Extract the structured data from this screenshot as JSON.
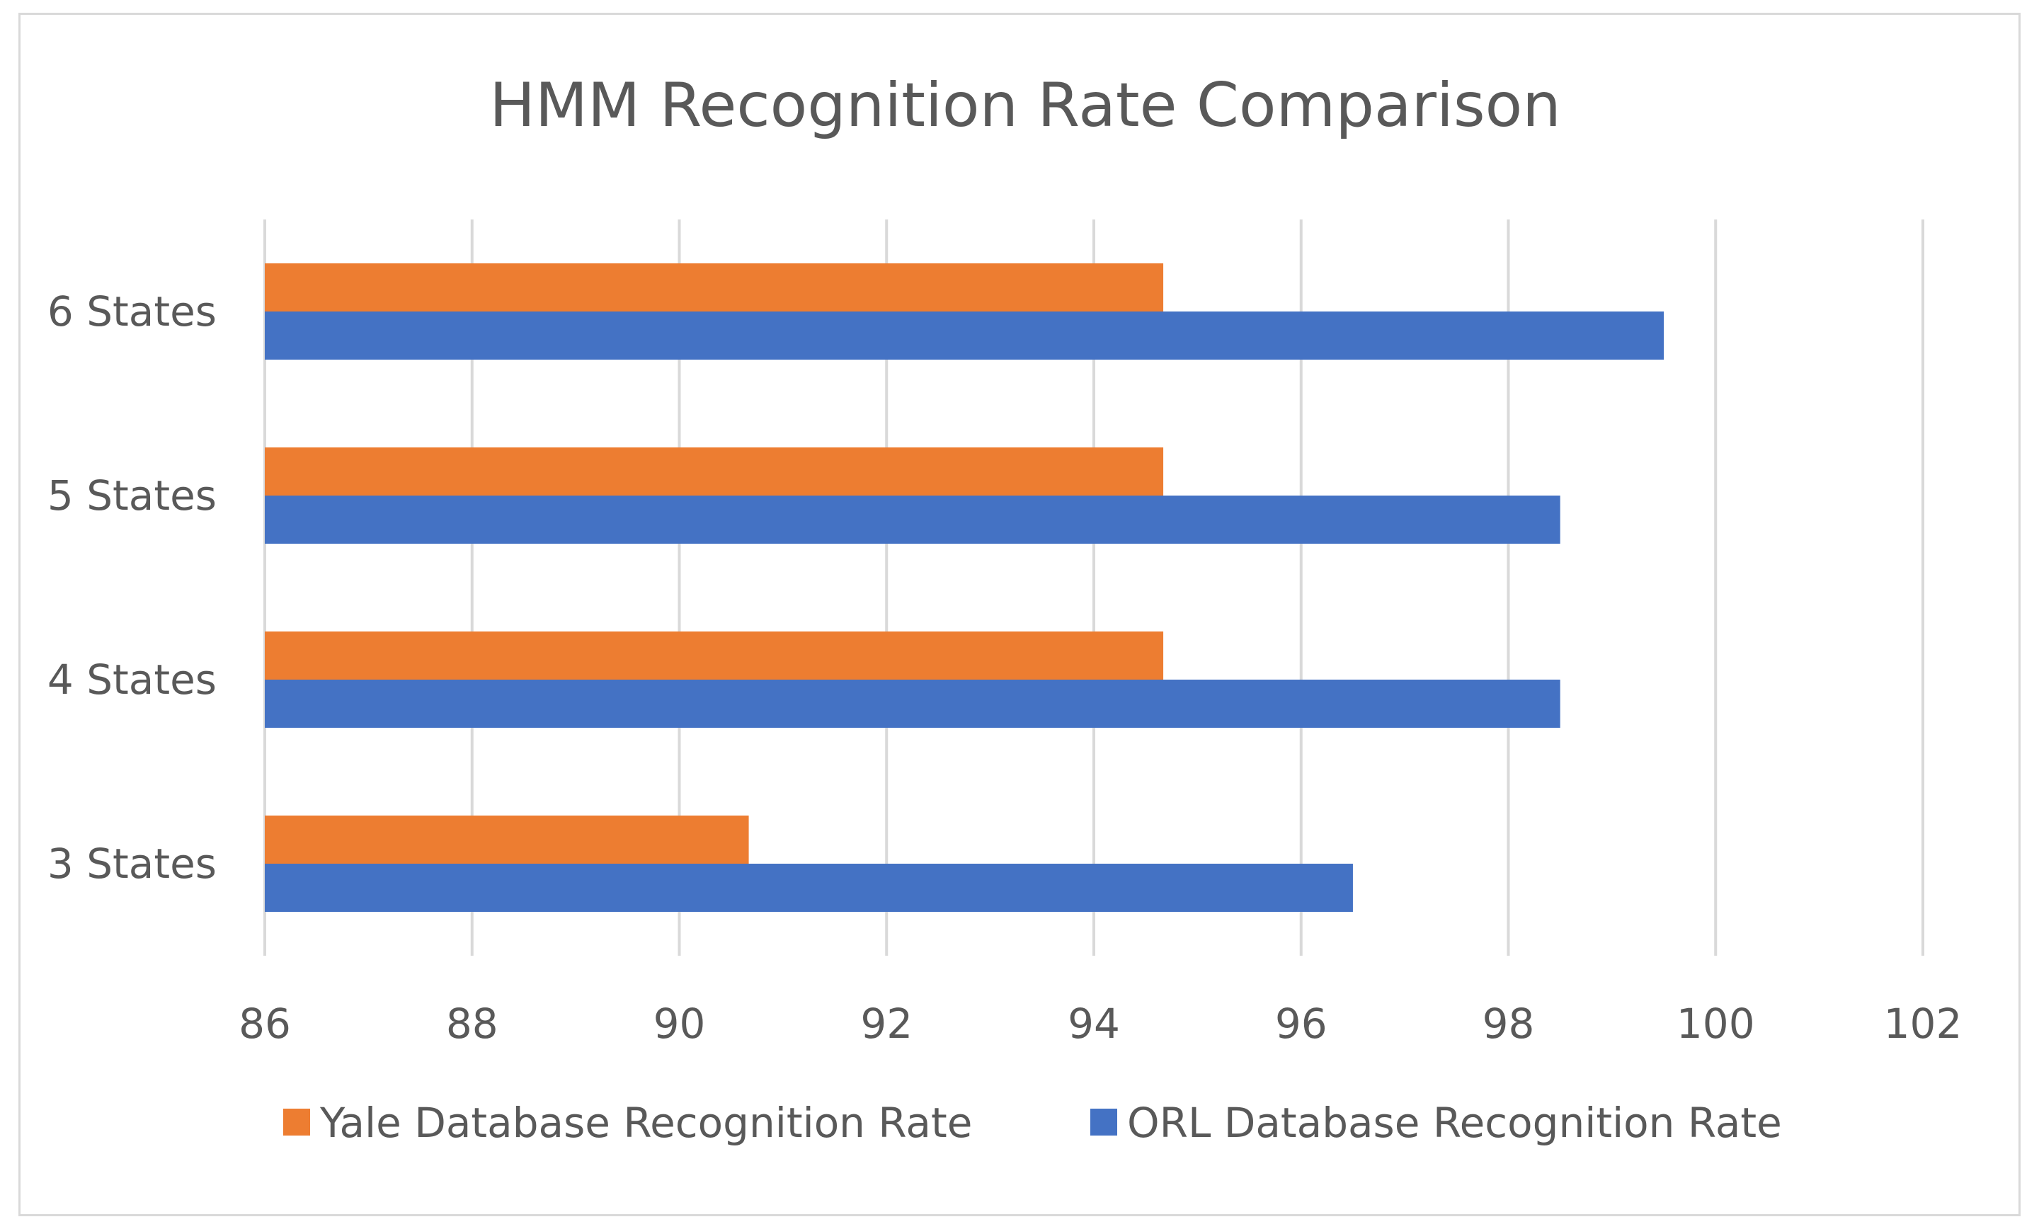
{
  "chart_data": {
    "type": "bar",
    "orientation": "horizontal",
    "title": "HMM Recognition Rate Comparison",
    "categories": [
      "3 States",
      "4 States",
      "5 States",
      "6 States"
    ],
    "series": [
      {
        "name": "Yale Database Recognition Rate",
        "color": "#ED7D31",
        "values": [
          90.67,
          94.67,
          94.67,
          94.67
        ]
      },
      {
        "name": "ORL Database Recognition Rate",
        "color": "#4472C4",
        "values": [
          96.5,
          98.5,
          98.5,
          99.5
        ]
      }
    ],
    "xlim": [
      86,
      102
    ],
    "xticks": [
      "86",
      "88",
      "90",
      "92",
      "94",
      "96",
      "98",
      "100",
      "102"
    ],
    "grid": true,
    "legend_position": "bottom",
    "xlabel": "",
    "ylabel": ""
  }
}
